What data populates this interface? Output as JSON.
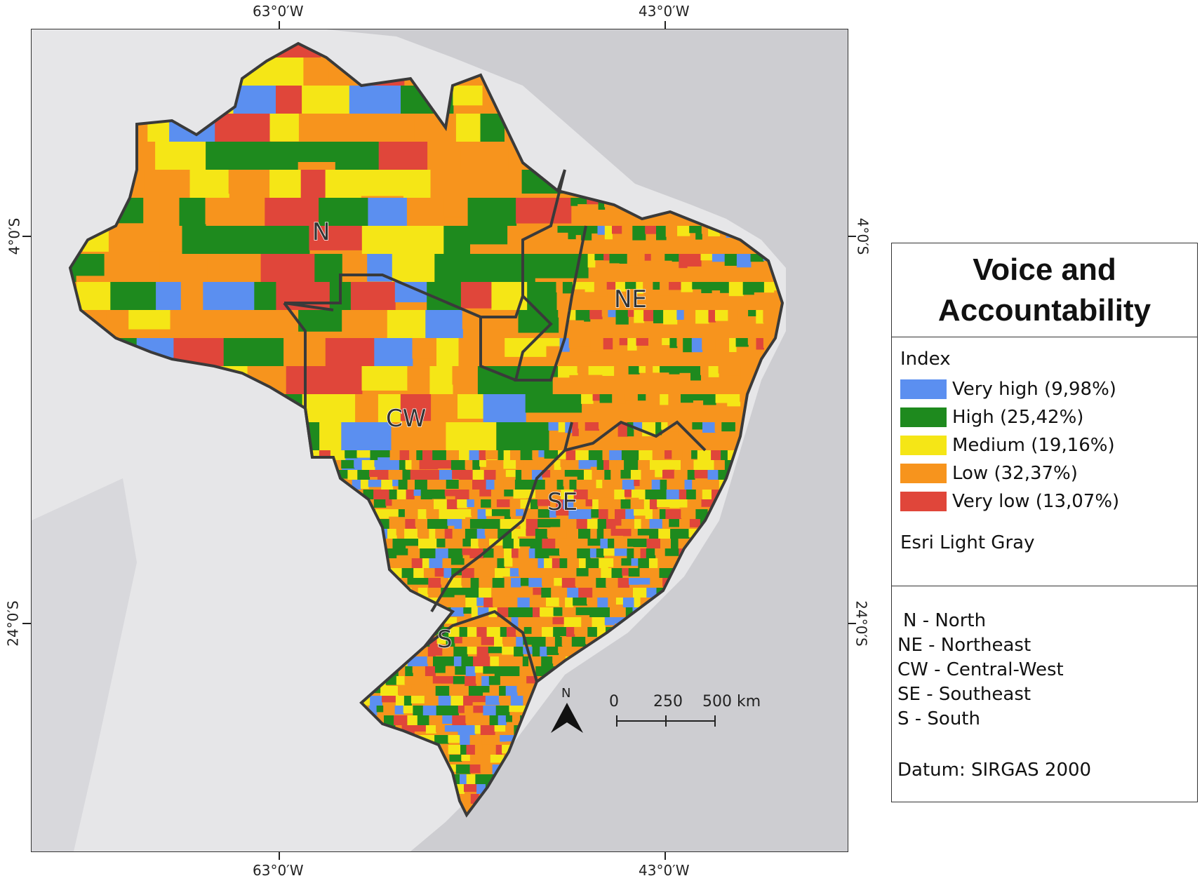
{
  "map": {
    "title_line1": "Voice and",
    "title_line2": "Accountability",
    "coords": {
      "top_left": "63°0′W",
      "top_right": "43°0′W",
      "bottom_left": "63°0′W",
      "bottom_right": "43°0′W",
      "left_upper": "4°0′S",
      "left_lower": "24°0′S",
      "right_upper": "4°0′S",
      "right_lower": "24°0′S"
    },
    "regions": {
      "north": "N",
      "northeast": "NE",
      "central_west": "CW",
      "southeast": "SE",
      "south": "S"
    },
    "north_arrow": "N",
    "scale_bar": {
      "zero": "0",
      "mid": "250",
      "end": "500 km"
    }
  },
  "legend": {
    "heading": "Index",
    "classes": [
      {
        "label": "Very high (9,98%)",
        "color": "#5b8ff0"
      },
      {
        "label": "High (25,42%)",
        "color": "#1e8a1e"
      },
      {
        "label": "Medium (19,16%)",
        "color": "#f5e616"
      },
      {
        "label": "Low (32,37%)",
        "color": "#f7941d"
      },
      {
        "label": "Very low (13,07%)",
        "color": "#e0463a"
      }
    ],
    "basemap": "Esri Light Gray",
    "region_key": [
      "N - North",
      "NE - Northeast",
      "CW - Central-West",
      "SE - Southeast",
      "S - South"
    ],
    "datum": "Datum: SIRGAS 2000"
  }
}
